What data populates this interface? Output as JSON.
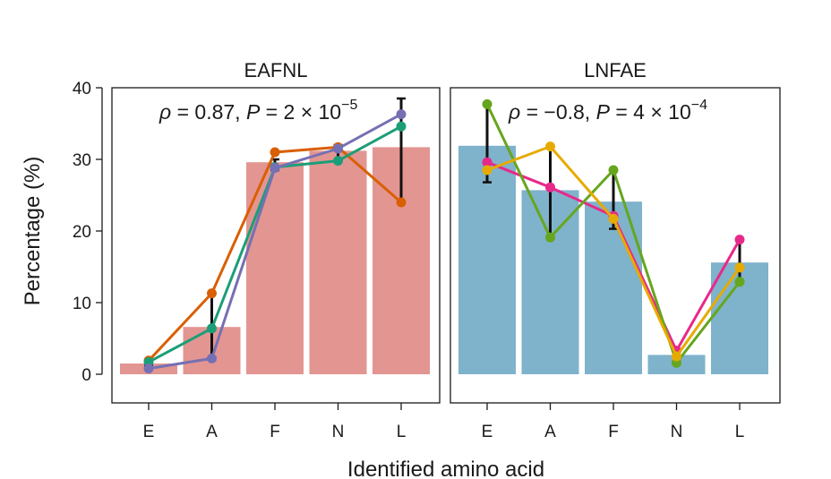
{
  "chart_data": {
    "type": "bar",
    "ylabel": "Percentage (%)",
    "xlabel": "Identified amino acid",
    "ylim": [
      -4,
      40
    ],
    "yticks": [
      0,
      10,
      20,
      30,
      40
    ],
    "grid": false,
    "panels": [
      {
        "title": "EAFNL",
        "categories": [
          "E",
          "A",
          "F",
          "N",
          "L"
        ],
        "bar_color": "#e39592",
        "bars": [
          1.5,
          6.6,
          29.6,
          31.2,
          31.7
        ],
        "errors": [
          [
            1.2,
            1.9
          ],
          [
            2.0,
            11.3
          ],
          [
            28.5,
            30.0
          ],
          [
            29.8,
            32.0
          ],
          [
            24.0,
            38.5
          ]
        ],
        "annotation": {
          "rho": "ρ",
          "rho_value": " = 0.87, ",
          "p": "P",
          "p_value": " = 2 × 10",
          "p_exp": "−5"
        },
        "series": [
          {
            "color": "#d95f02",
            "values": [
              1.9,
              11.3,
              31.0,
              31.7,
              24.0
            ]
          },
          {
            "color": "#1b9e77",
            "values": [
              1.7,
              6.4,
              28.9,
              29.8,
              34.6
            ]
          },
          {
            "color": "#7570b3",
            "values": [
              0.8,
              2.2,
              28.8,
              31.5,
              36.3
            ]
          }
        ]
      },
      {
        "title": "LNFAE",
        "categories": [
          "E",
          "A",
          "F",
          "N",
          "L"
        ],
        "bar_color": "#7fb2cb",
        "bars": [
          31.9,
          25.7,
          24.1,
          2.7,
          15.6
        ],
        "errors": [
          [
            26.8,
            37.7
          ],
          [
            19.0,
            31.9
          ],
          [
            20.3,
            28.6
          ],
          [
            1.6,
            3.4
          ],
          [
            12.9,
            18.8
          ]
        ],
        "annotation": {
          "rho": "ρ",
          "rho_value": " = −0.8, ",
          "p": "P",
          "p_value": " = 4 × 10",
          "p_exp": "−4"
        },
        "series": [
          {
            "color": "#e7298a",
            "values": [
              29.6,
              26.1,
              22.1,
              3.3,
              18.8
            ]
          },
          {
            "color": "#66a61e",
            "values": [
              37.7,
              19.1,
              28.5,
              1.6,
              12.9
            ]
          },
          {
            "color": "#e6ab02",
            "values": [
              28.5,
              31.8,
              21.7,
              2.5,
              14.9
            ]
          }
        ]
      }
    ]
  }
}
